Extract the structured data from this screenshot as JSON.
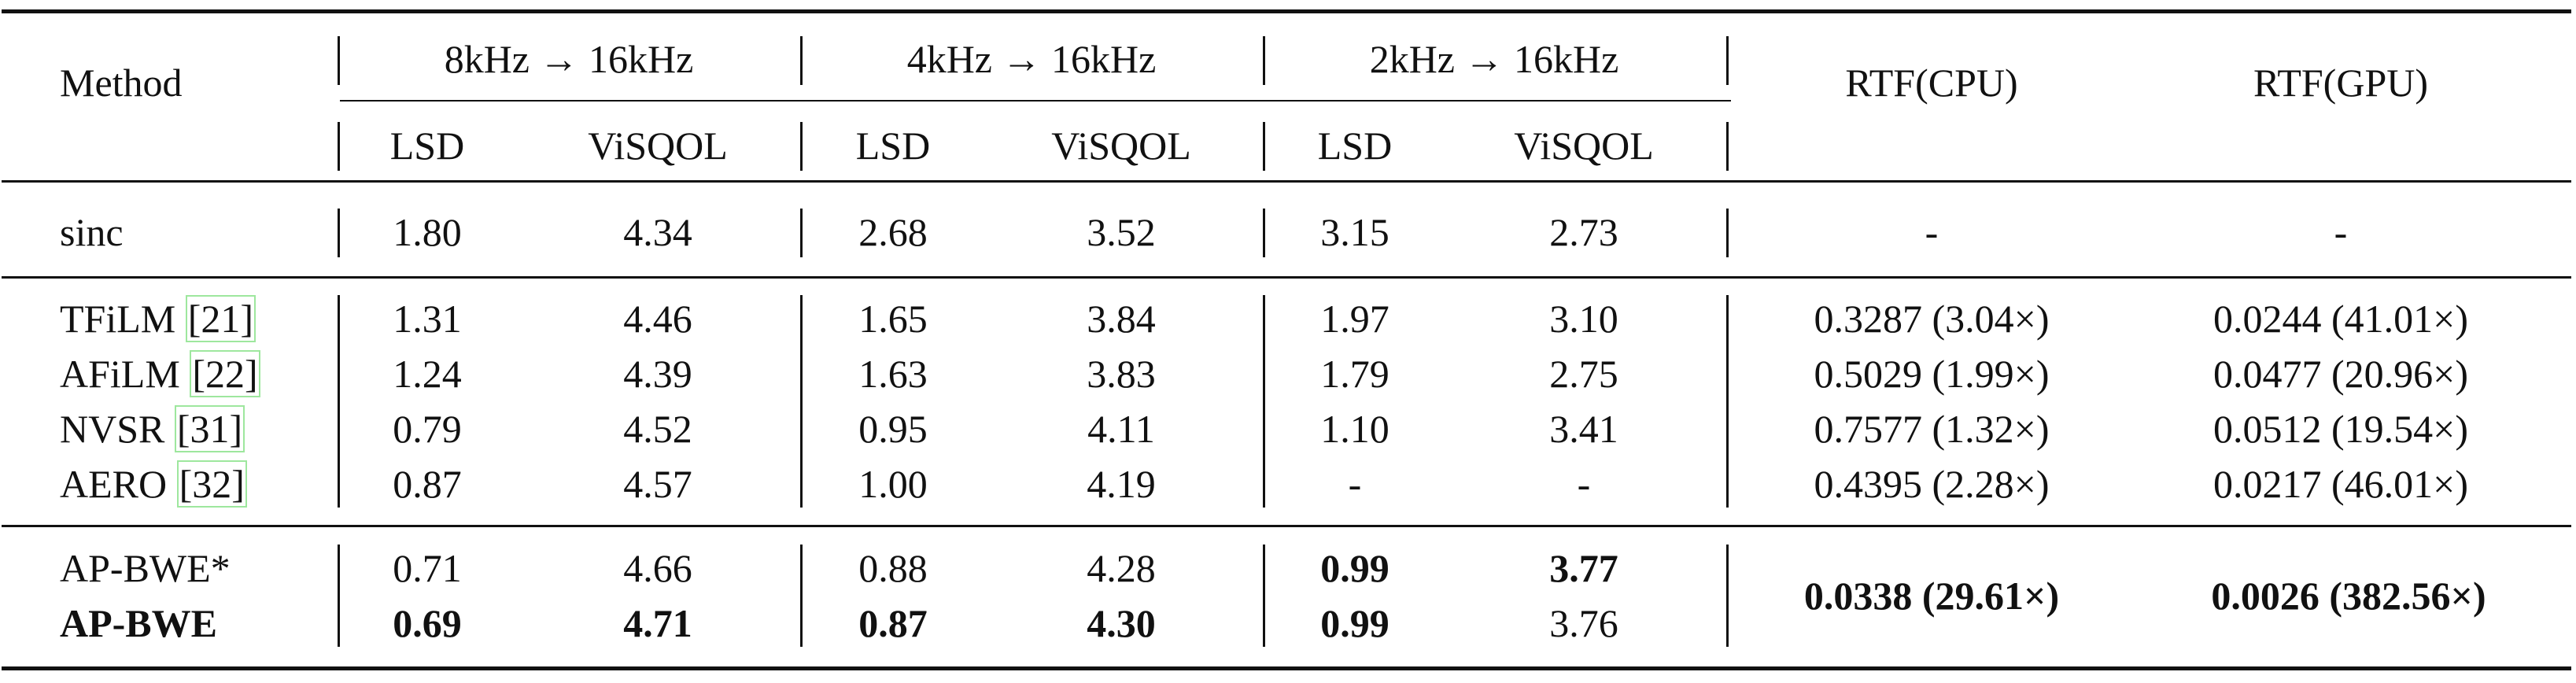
{
  "table": {
    "header": {
      "method": "Method",
      "groups": [
        "8kHz → 16kHz",
        "4kHz → 16kHz",
        "2kHz → 16kHz"
      ],
      "subheaders": [
        "LSD",
        "ViSQOL",
        "LSD",
        "ViSQOL",
        "LSD",
        "ViSQOL"
      ],
      "rtf_cpu": "RTF(CPU)",
      "rtf_gpu": "RTF(GPU)"
    },
    "rows": [
      {
        "method": "sinc",
        "cite": "",
        "lsd8": "1.80",
        "visqol8": "4.34",
        "lsd4": "2.68",
        "visqol4": "3.52",
        "lsd2": "3.15",
        "visqol2": "2.73",
        "cpu": "-",
        "gpu": "-"
      },
      {
        "method": "TFiLM ",
        "cite": "[21]",
        "lsd8": "1.31",
        "visqol8": "4.46",
        "lsd4": "1.65",
        "visqol4": "3.84",
        "lsd2": "1.97",
        "visqol2": "3.10",
        "cpu": "0.3287 (3.04×)",
        "gpu": "0.0244 (41.01×)"
      },
      {
        "method": "AFiLM ",
        "cite": "[22]",
        "lsd8": "1.24",
        "visqol8": "4.39",
        "lsd4": "1.63",
        "visqol4": "3.83",
        "lsd2": "1.79",
        "visqol2": "2.75",
        "cpu": "0.5029 (1.99×)",
        "gpu": "0.0477 (20.96×)"
      },
      {
        "method": "NVSR ",
        "cite": "[31]",
        "lsd8": "0.79",
        "visqol8": "4.52",
        "lsd4": "0.95",
        "visqol4": "4.11",
        "lsd2": "1.10",
        "visqol2": "3.41",
        "cpu": "0.7577 (1.32×)",
        "gpu": "0.0512 (19.54×)"
      },
      {
        "method": "AERO ",
        "cite": "[32]",
        "lsd8": "0.87",
        "visqol8": "4.57",
        "lsd4": "1.00",
        "visqol4": "4.19",
        "lsd2": "-",
        "visqol2": "-",
        "cpu": "0.4395 (2.28×)",
        "gpu": "0.0217 (46.01×)"
      },
      {
        "method": "AP-BWE*",
        "cite": "",
        "lsd8": "0.71",
        "visqol8": "4.66",
        "lsd4": "0.88",
        "visqol4": "4.28",
        "lsd2": "0.99",
        "visqol2": "3.77"
      },
      {
        "method": "AP-BWE",
        "cite": "",
        "lsd8": "0.69",
        "visqol8": "4.71",
        "lsd4": "0.87",
        "visqol4": "4.30",
        "lsd2": "0.99",
        "visqol2": "3.76"
      }
    ],
    "shared_rtf": {
      "cpu": "0.0338 (29.61×)",
      "gpu": "0.0026 (382.56×)"
    }
  }
}
